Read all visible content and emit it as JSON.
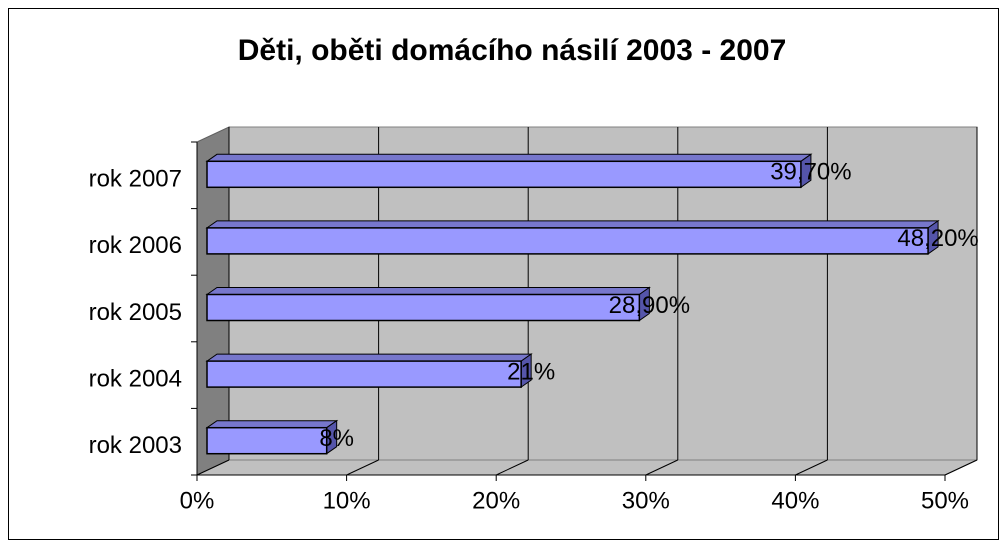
{
  "chart_data": {
    "type": "bar",
    "orientation": "horizontal",
    "title": "Děti, oběti domácího násilí 2003 - 2007",
    "categories": [
      "rok 2003",
      "rok 2004",
      "rok 2005",
      "rok 2006",
      "rok 2007"
    ],
    "values": [
      8,
      21,
      28.9,
      48.2,
      39.7
    ],
    "value_labels": [
      "8%",
      "21%",
      "28,90%",
      "48,20%",
      "39,70%"
    ],
    "color": "#9999ff",
    "xlim": [
      0,
      50
    ],
    "xticks": [
      {
        "value": 0,
        "label": "0%"
      },
      {
        "value": 10,
        "label": "10%"
      },
      {
        "value": 20,
        "label": "20%"
      },
      {
        "value": 30,
        "label": "30%"
      },
      {
        "value": 40,
        "label": "40%"
      },
      {
        "value": 50,
        "label": "50%"
      }
    ],
    "grid": true
  }
}
